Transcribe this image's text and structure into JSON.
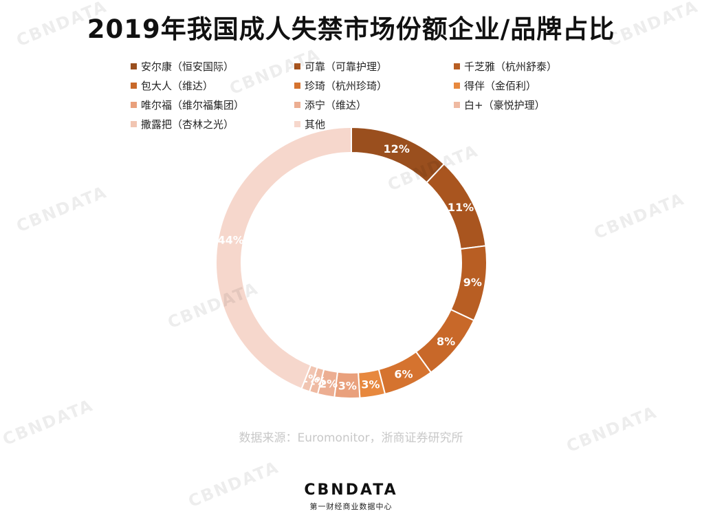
{
  "title": "2019年我国成人失禁市场份额企业/品牌占比",
  "source": "数据来源：Euromonitor，浙商证券研究所",
  "logo": {
    "text": "CBNDATA",
    "subtitle": "第一财经商业数据中心"
  },
  "watermark": "CBNDATA",
  "chart_data": {
    "type": "pie",
    "style": "donut",
    "legend_position": "top",
    "series": [
      {
        "name": "安尔康（恒安国际）",
        "value": 12,
        "label": "12%",
        "color": "#9a4f1e"
      },
      {
        "name": "可靠（可靠护理）",
        "value": 11,
        "label": "11%",
        "color": "#a9551f"
      },
      {
        "name": "千芝雅（杭州舒泰）",
        "value": 9,
        "label": "9%",
        "color": "#b85e23"
      },
      {
        "name": "包大人（维达）",
        "value": 8,
        "label": "8%",
        "color": "#c86829"
      },
      {
        "name": "珍琦（杭州珍琦）",
        "value": 6,
        "label": "6%",
        "color": "#d5732f"
      },
      {
        "name": "得伴（金佰利）",
        "value": 3,
        "label": "3%",
        "color": "#e7883e"
      },
      {
        "name": "唯尔福（维尔福集团）",
        "value": 3,
        "label": "3%",
        "color": "#e9a07c"
      },
      {
        "name": "添宁（维达）",
        "value": 2,
        "label": "2%",
        "color": "#ecae92"
      },
      {
        "name": "白+（豪悦护理）",
        "value": 1,
        "label": "1%",
        "color": "#efbaa2"
      },
      {
        "name": "撒露把（杏林之光）",
        "value": 1,
        "label": "1%",
        "color": "#f1c5b2"
      },
      {
        "name": "其他",
        "value": 44,
        "label": "44%",
        "color": "#f6d7cc"
      }
    ]
  }
}
